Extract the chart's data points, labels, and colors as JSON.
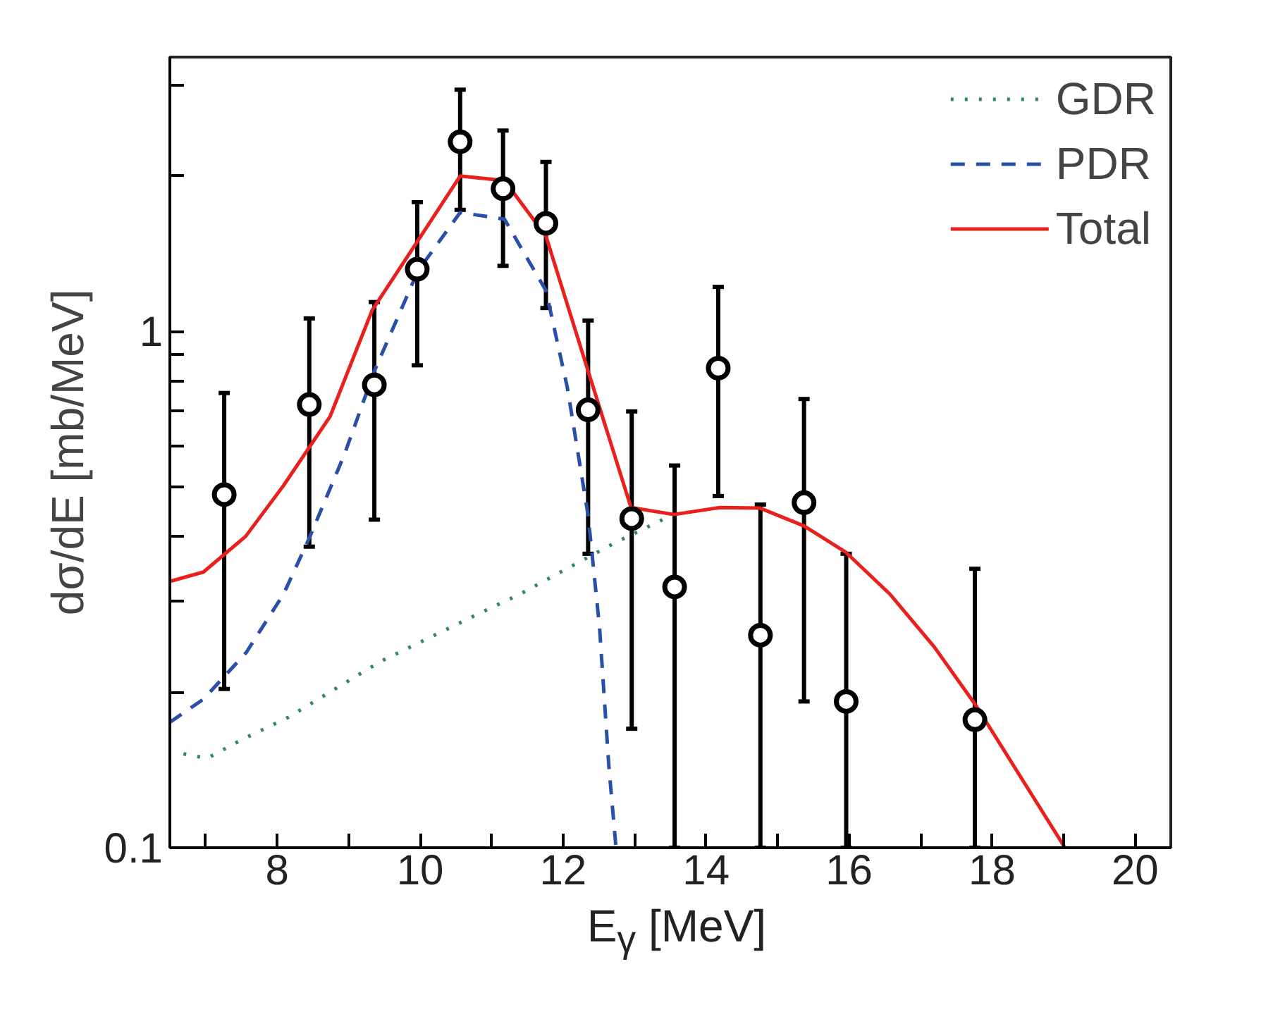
{
  "chart_data": {
    "type": "line",
    "xlabel": "E$_{γ}$ [MeV]",
    "ylabel": "dσ/dE [mb/MeV]",
    "log": "y",
    "grid": false,
    "legend": "top right",
    "xlim": [
      6.5,
      20.5
    ],
    "ylim": [
      0.1,
      3.4
    ],
    "xticks": [
      {
        "value": 7,
        "label": null
      },
      8,
      {
        "value": 9,
        "label": null
      },
      10,
      {
        "value": 11,
        "label": null
      },
      12,
      {
        "value": 13,
        "label": null
      },
      14,
      {
        "value": 15,
        "label": null
      },
      16,
      {
        "value": 17,
        "label": null
      },
      18,
      {
        "value": 19,
        "label": null
      },
      20
    ],
    "yticks": [
      0.1,
      {
        "value": 0.2,
        "label": null
      },
      {
        "value": 0.3,
        "label": null
      },
      {
        "value": 0.4,
        "label": null
      },
      {
        "value": 0.5,
        "label": null
      },
      {
        "value": 0.6,
        "label": null
      },
      {
        "value": 0.7,
        "label": null
      },
      {
        "value": 0.8,
        "label": null
      },
      {
        "value": 0.9,
        "label": null
      },
      1,
      {
        "value": 2,
        "label": null
      },
      {
        "value": 3,
        "label": null
      }
    ],
    "series": [
      {
        "name": "GDR",
        "color": "#2e8b57",
        "line_style": "dotted",
        "marker": "none",
        "x": [
          6.69,
          7.02,
          7.51,
          8.16,
          8.81,
          9.46,
          10.1,
          10.75,
          11.4,
          12.05,
          12.7,
          13.42
        ],
        "values": [
          0.152,
          0.149,
          0.162,
          0.179,
          0.203,
          0.23,
          0.254,
          0.281,
          0.31,
          0.347,
          0.388,
          0.434
        ]
      },
      {
        "name": "PDR",
        "color": "#2a4fa8",
        "line_style": "dashed",
        "marker": "none",
        "x": [
          6.5,
          6.97,
          7.57,
          8.09,
          8.45,
          8.94,
          9.36,
          9.97,
          10.56,
          11.18,
          11.76,
          12.06,
          12.35,
          12.51,
          12.64,
          12.74
        ],
        "values": [
          0.175,
          0.194,
          0.239,
          0.31,
          0.398,
          0.577,
          0.838,
          1.31,
          1.7,
          1.65,
          1.2,
          0.778,
          0.44,
          0.267,
          0.144,
          0.1
        ]
      },
      {
        "name": "Total",
        "color": "#e8211e",
        "line_style": "solid",
        "marker": "none",
        "x": [
          6.5,
          6.97,
          7.56,
          8.09,
          8.74,
          9.33,
          9.97,
          10.56,
          11.18,
          11.76,
          12.35,
          12.95,
          13.55,
          14.2,
          14.75,
          15.37,
          15.95,
          16.57,
          17.19,
          17.77,
          19.02
        ],
        "values": [
          0.328,
          0.342,
          0.401,
          0.503,
          0.684,
          1.1,
          1.5,
          2.0,
          1.96,
          1.53,
          0.838,
          0.456,
          0.442,
          0.456,
          0.455,
          0.42,
          0.374,
          0.31,
          0.245,
          0.189,
          0.1
        ]
      },
      {
        "type": "scatter",
        "color": "#000000",
        "marker": "circle",
        "x": [
          7.26,
          8.45,
          9.36,
          9.96,
          10.56,
          11.16,
          11.76,
          12.35,
          12.96,
          13.56,
          14.17,
          14.76,
          15.37,
          15.96,
          17.76
        ],
        "values": [
          0.483,
          0.722,
          0.788,
          1.32,
          2.33,
          1.89,
          1.62,
          0.705,
          0.434,
          0.32,
          0.849,
          0.258,
          0.466,
          0.192,
          0.177
        ],
        "errors": [
          [
            0.203,
            0.76
          ],
          [
            0.383,
            1.06
          ],
          [
            0.432,
            1.14
          ],
          [
            0.86,
            1.78
          ],
          [
            1.72,
            2.94
          ],
          [
            1.34,
            2.45
          ],
          [
            1.11,
            2.13
          ],
          [
            0.371,
            1.05
          ],
          [
            0.17,
            0.7
          ],
          [
            0.1,
            0.55
          ],
          [
            0.48,
            1.22
          ],
          [
            0.1,
            0.462
          ],
          [
            0.192,
            0.74
          ],
          [
            0.1,
            0.371
          ],
          [
            0.1,
            0.347
          ]
        ]
      }
    ]
  }
}
